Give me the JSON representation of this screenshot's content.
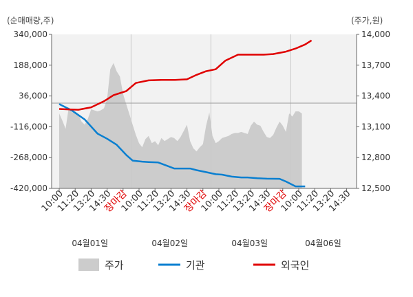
{
  "chart_data": {
    "type": "line",
    "left_unit": "(순매매량,주)",
    "right_unit": "(주가,원)",
    "left_axis": {
      "ylim": [
        -420000,
        340000
      ],
      "ticks": [
        "340,000",
        "188,000",
        "36,000",
        "-116,000",
        "-268,000",
        "-420,000"
      ]
    },
    "right_axis": {
      "ylim": [
        12500,
        14000
      ],
      "ticks": [
        "14,000",
        "13,700",
        "13,400",
        "13,100",
        "12,800",
        "12,500"
      ]
    },
    "x_ticks": [
      {
        "label": "10:00",
        "color": "#333333"
      },
      {
        "label": "11:20",
        "color": "#333333"
      },
      {
        "label": "13:20",
        "color": "#333333"
      },
      {
        "label": "14:30",
        "color": "#333333"
      },
      {
        "label": "장마감",
        "color": "#e00000"
      },
      {
        "label": "10:00",
        "color": "#333333"
      },
      {
        "label": "11:20",
        "color": "#333333"
      },
      {
        "label": "13:20",
        "color": "#333333"
      },
      {
        "label": "14:30",
        "color": "#333333"
      },
      {
        "label": "장마감",
        "color": "#e00000"
      },
      {
        "label": "10:00",
        "color": "#333333"
      },
      {
        "label": "11:20",
        "color": "#333333"
      },
      {
        "label": "13:20",
        "color": "#333333"
      },
      {
        "label": "14:30",
        "color": "#333333"
      },
      {
        "label": "장마감",
        "color": "#e00000"
      },
      {
        "label": "10:00",
        "color": "#333333"
      },
      {
        "label": "11:20",
        "color": "#333333"
      },
      {
        "label": "13:20",
        "color": "#333333"
      },
      {
        "label": "14:30",
        "color": "#333333"
      }
    ],
    "dates": [
      "04월01일",
      "04월02일",
      "04월03일",
      "04월06일"
    ],
    "day_boundaries": [
      4.5,
      9.5,
      14.5
    ],
    "reference_line_right": 13330,
    "legend": [
      "주가",
      "기관",
      "외국인"
    ],
    "colors": {
      "price": "#cccccc",
      "institution": "#0a7fd0",
      "foreign": "#e00000",
      "grid": "#c8c8c8",
      "plot_bg": "#f2f2f2"
    },
    "series": [
      {
        "name": "주가",
        "axis": "right",
        "x": [
          0,
          0.2,
          0.4,
          0.6,
          0.8,
          1.0,
          1.2,
          1.4,
          1.6,
          1.8,
          2.0,
          2.2,
          2.4,
          2.6,
          2.8,
          3.0,
          3.2,
          3.4,
          3.6,
          3.8,
          4.0,
          4.2,
          4.4,
          4.6,
          4.8,
          5.0,
          5.2,
          5.4,
          5.6,
          5.8,
          6.0,
          6.2,
          6.4,
          6.6,
          6.8,
          7.0,
          7.2,
          7.4,
          7.6,
          7.8,
          8.0,
          8.2,
          8.4,
          8.6,
          8.8,
          9.0,
          9.2,
          9.4,
          9.6,
          9.8,
          10.0,
          10.2,
          10.4,
          10.6,
          10.8,
          11.0,
          11.2,
          11.4,
          11.6,
          11.8,
          12.0,
          12.2,
          12.4,
          12.6,
          12.8,
          13.0,
          13.2,
          13.4,
          13.6,
          13.8,
          14.0,
          14.2,
          14.4,
          14.6,
          14.8,
          15.0,
          15.2
        ],
        "values": [
          13230,
          13160,
          13080,
          13290,
          13240,
          13250,
          13220,
          13150,
          13120,
          13180,
          13270,
          13260,
          13250,
          13260,
          13280,
          13370,
          13660,
          13720,
          13640,
          13590,
          13420,
          13320,
          13220,
          13120,
          13020,
          12940,
          12900,
          12980,
          13010,
          12940,
          12960,
          12920,
          12990,
          12960,
          12980,
          13000,
          12990,
          12960,
          13000,
          13060,
          13120,
          12960,
          12890,
          12860,
          12900,
          12930,
          13110,
          13240,
          13010,
          12940,
          12960,
          12990,
          13000,
          13010,
          13030,
          13040,
          13040,
          13050,
          13040,
          13030,
          13110,
          13150,
          13120,
          13110,
          13050,
          13000,
          12990,
          13020,
          13090,
          13150,
          13110,
          13050,
          13230,
          13200,
          13250,
          13250,
          13230
        ]
      },
      {
        "name": "기관",
        "axis": "left",
        "x": [
          0,
          0.8,
          1.6,
          2.4,
          3.0,
          3.6,
          4.2,
          4.6,
          5.2,
          5.6,
          6.2,
          6.8,
          7.2,
          7.6,
          8.2,
          8.6,
          9.2,
          9.8,
          10.2,
          10.8,
          11.4,
          11.8,
          12.4,
          13.0,
          13.8,
          14.2,
          14.8,
          15.4
        ],
        "values": [
          -4000,
          -36000,
          -80000,
          -150000,
          -175000,
          -205000,
          -255000,
          -283000,
          -288000,
          -290000,
          -292000,
          -310000,
          -322000,
          -322000,
          -322000,
          -330000,
          -340000,
          -350000,
          -352000,
          -362000,
          -366000,
          -366000,
          -370000,
          -372000,
          -373000,
          -386000,
          -410000,
          -410000
        ]
      },
      {
        "name": "외국인",
        "axis": "left",
        "x": [
          0,
          0.6,
          1.2,
          2.0,
          2.8,
          3.4,
          4.2,
          4.8,
          5.6,
          6.4,
          7.2,
          8.0,
          8.6,
          9.2,
          9.8,
          10.4,
          11.2,
          12.0,
          12.8,
          13.4,
          14.2,
          14.8,
          15.4,
          15.8
        ],
        "values": [
          -28000,
          -30000,
          -32000,
          -20000,
          10000,
          40000,
          60000,
          100000,
          113000,
          115000,
          115000,
          118000,
          140000,
          158000,
          168000,
          210000,
          240000,
          240000,
          240000,
          243000,
          255000,
          270000,
          290000,
          310000
        ]
      }
    ]
  }
}
